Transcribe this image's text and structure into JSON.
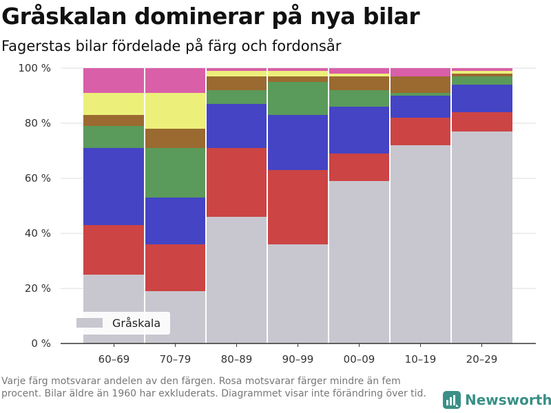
{
  "title": "Gråskalan dominerar på nya bilar",
  "subtitle": "Fagerstas bilar fördelade på färg och fordonsår",
  "note": "Varje färg motsvarar andelen av den färgen. Rosa motsvarar färger mindre än fem procent. Bilar äldre än 1960 har exkluderats. Diagrammet visar inte förändring över tid.",
  "brand": "Newsworthy",
  "chart_data": {
    "type": "bar",
    "stacked": true,
    "categories": [
      "60–69",
      "70–79",
      "80–89",
      "90–99",
      "00–09",
      "10–19",
      "20–29"
    ],
    "series": [
      {
        "name": "Gråskala",
        "color": "#c8c7cf",
        "values": [
          25,
          19,
          46,
          36,
          59,
          72,
          77
        ]
      },
      {
        "color": "#cc4444",
        "values": [
          18,
          17,
          25,
          27,
          10,
          10,
          7
        ]
      },
      {
        "color": "#4444c4",
        "values": [
          28,
          17,
          16,
          20,
          17,
          8,
          10
        ]
      },
      {
        "color": "#5a9a5a",
        "values": [
          8,
          18,
          5,
          12,
          6,
          1,
          3
        ]
      },
      {
        "color": "#9a6a30",
        "values": [
          4,
          7,
          5,
          2,
          5,
          6,
          1
        ]
      },
      {
        "color": "#ecf07a",
        "values": [
          8,
          13,
          2,
          2,
          1,
          0,
          1
        ]
      },
      {
        "color": "#d95fa8",
        "values": [
          9,
          9,
          1,
          1,
          2,
          3,
          1
        ]
      }
    ],
    "ylim": [
      0,
      100
    ],
    "yticks": [
      0,
      20,
      40,
      60,
      80,
      100
    ],
    "ytick_labels": [
      "0 %",
      "20 %",
      "40 %",
      "60 %",
      "80 %",
      "100 %"
    ],
    "legend": {
      "label": "Gråskala",
      "position": "bottom-left"
    },
    "grid": true
  }
}
